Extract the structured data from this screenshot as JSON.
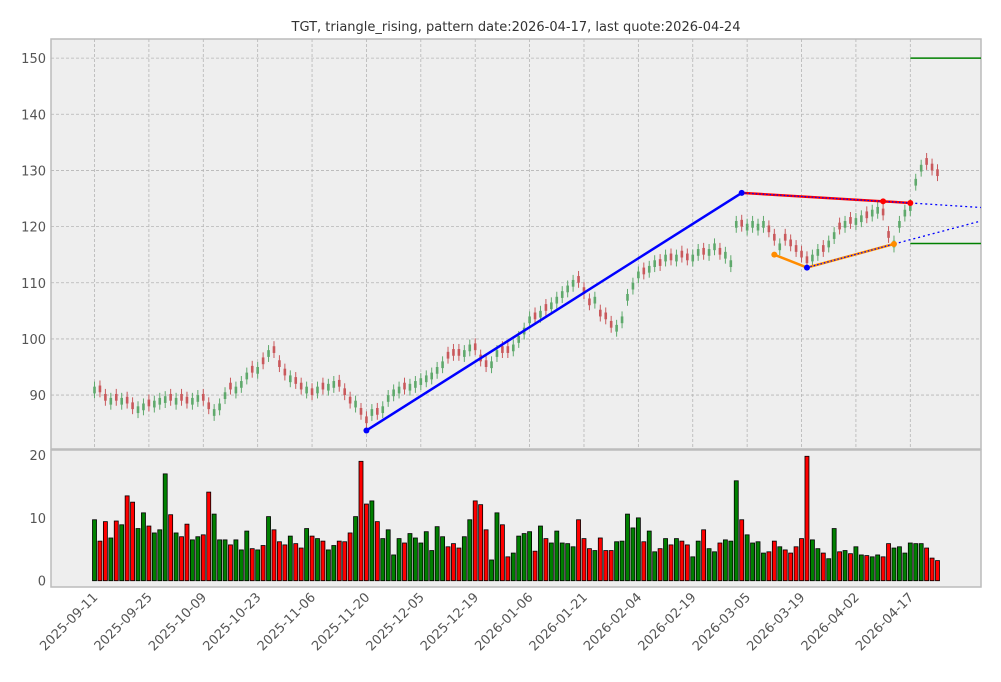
{
  "chart_data": {
    "type": "candlestick",
    "title": "TGT, triangle_rising, pattern date:2026-04-17, last quote:2026-04-24",
    "colors": {
      "up_candle": "#5fa96c",
      "down_candle": "#c9595c",
      "up_volume": "#008000",
      "down_volume": "#ff0000",
      "support_line": "#0000ff",
      "resistance_line": "#ff0000",
      "lower_line": "#ff8c00",
      "target_line": "#008000"
    },
    "grid": true,
    "price_axis": {
      "ylim": [
        80.4,
        153.4
      ],
      "ticks": [
        90,
        100,
        110,
        120,
        130,
        140,
        150
      ]
    },
    "volume_axis": {
      "ylim": [
        -1,
        20.8
      ],
      "ticks": [
        0,
        10,
        20
      ]
    },
    "x_ticks": [
      {
        "index": 0,
        "label": "2025-09-11"
      },
      {
        "index": 10,
        "label": "2025-09-25"
      },
      {
        "index": 20,
        "label": "2025-10-09"
      },
      {
        "index": 30,
        "label": "2025-10-23"
      },
      {
        "index": 40,
        "label": "2025-11-06"
      },
      {
        "index": 50,
        "label": "2025-11-20"
      },
      {
        "index": 60,
        "label": "2025-12-05"
      },
      {
        "index": 70,
        "label": "2025-12-19"
      },
      {
        "index": 80,
        "label": "2026-01-06"
      },
      {
        "index": 90,
        "label": "2026-01-21"
      },
      {
        "index": 100,
        "label": "2026-02-04"
      },
      {
        "index": 110,
        "label": "2026-02-19"
      },
      {
        "index": 120,
        "label": "2026-03-05"
      },
      {
        "index": 130,
        "label": "2026-03-19"
      },
      {
        "index": 140,
        "label": "2026-04-02"
      },
      {
        "index": 150,
        "label": "2026-04-17"
      }
    ],
    "xlim": [
      -8,
      163
    ],
    "direction": "GRRGRGRRGGRGGGRGRRGGRRGGGRGGGRGRGRRRGRRGRGRGGRRRGRRGRGGGGRGGGGGGGRRRGGRRRGGRRGGGGRGRGGGGGRRRGRRRGGGGGRGGRGRGRRGGRGGRGGGRGGGGRRGRRRRRGGRGGRGRGGRGGRRGGGGGGRRR",
    "close": [
      91.5,
      90.5,
      89,
      89.5,
      89,
      89.5,
      88.5,
      87.5,
      88,
      88.5,
      88,
      89,
      89.5,
      89.8,
      89,
      89.5,
      89,
      88.5,
      89.5,
      90,
      89,
      87.5,
      87.5,
      88.5,
      90.5,
      91,
      91.5,
      92.5,
      94,
      94,
      95,
      95.5,
      98,
      97.5,
      95,
      93.5,
      93.5,
      92,
      91,
      91.5,
      90,
      91.5,
      91,
      92,
      92.5,
      91.5,
      90,
      88.5,
      89,
      86.5,
      85,
      87.5,
      86.5,
      88,
      90,
      91,
      91.5,
      91,
      92,
      92.5,
      93,
      93.5,
      94,
      95,
      96,
      96.5,
      97,
      97,
      98,
      99,
      98,
      96,
      95,
      96,
      98,
      97.5,
      97.5,
      99,
      100.5,
      102,
      104,
      103.5,
      105,
      105,
      106.5,
      107.5,
      108.5,
      109.5,
      110.5,
      110,
      108,
      106,
      107.5,
      104,
      103.5,
      102,
      102.5,
      104,
      108,
      110,
      112,
      111.5,
      113,
      114,
      113,
      115,
      114,
      115,
      114.5,
      114,
      115,
      116,
      115,
      116,
      117,
      115,
      115.5,
      114,
      121,
      120,
      120.5,
      121,
      120.5,
      121,
      119,
      117.5,
      117,
      117.5,
      116.5,
      115.5,
      114.5,
      113.5,
      115,
      116,
      115.5,
      117.5,
      119,
      119.5,
      121,
      120.5,
      121.5,
      122,
      121.5,
      123,
      123.5,
      122,
      118,
      117.5,
      121,
      123,
      124,
      128.5,
      131,
      131,
      130,
      129
    ],
    "volume": [
      9.7,
      6.3,
      9.4,
      6.8,
      9.5,
      8.9,
      13.5,
      12.5,
      8.3,
      10.8,
      8.7,
      7.6,
      8.1,
      17.0,
      10.5,
      7.6,
      7.0,
      9.0,
      6.5,
      7.0,
      7.3,
      14.1,
      10.6,
      6.5,
      6.5,
      5.7,
      6.5,
      4.9,
      7.9,
      5.1,
      4.9,
      5.6,
      10.2,
      8.1,
      6.2,
      5.7,
      7.1,
      5.9,
      5.2,
      8.3,
      7.1,
      6.7,
      6.3,
      4.9,
      5.6,
      6.3,
      6.2,
      7.6,
      10.2,
      19.0,
      12.2,
      12.7,
      9.4,
      6.7,
      8.1,
      4.1,
      6.7,
      6.0,
      7.5,
      6.8,
      6.0,
      7.8,
      4.8,
      8.6,
      7.0,
      5.4,
      5.9,
      5.2,
      7.0,
      9.7,
      12.7,
      12.1,
      8.1,
      3.3,
      10.8,
      8.9,
      3.8,
      4.4,
      7.1,
      7.5,
      7.8,
      4.7,
      8.7,
      6.7,
      6.0,
      7.9,
      6.0,
      5.9,
      5.4,
      9.7,
      6.7,
      5.1,
      4.8,
      6.8,
      4.8,
      4.8,
      6.2,
      6.3,
      10.6,
      8.4,
      10.0,
      6.2,
      7.9,
      4.6,
      5.1,
      6.7,
      5.7,
      6.7,
      6.3,
      5.7,
      3.8,
      6.3,
      8.1,
      5.1,
      4.6,
      6.0,
      6.5,
      6.3,
      15.9,
      9.7,
      7.3,
      6.0,
      6.2,
      4.4,
      4.6,
      6.3,
      5.4,
      4.9,
      4.4,
      5.4,
      6.7,
      19.8,
      6.5,
      5.1,
      4.4,
      3.5,
      8.3,
      4.6,
      4.8,
      4.3,
      5.4,
      4.1,
      4.0,
      3.8,
      4.1,
      3.8,
      5.9,
      5.2,
      5.4,
      4.4,
      6.0,
      5.9,
      5.9,
      5.2,
      3.6,
      3.2
    ],
    "pattern_lines": {
      "rise_line": [
        [
          50,
          83.7
        ],
        [
          119,
          126
        ]
      ],
      "upper_line": [
        [
          119,
          126
        ],
        [
          145,
          124.5
        ],
        [
          150,
          124.2
        ]
      ],
      "lower_line": [
        [
          125,
          115
        ],
        [
          131,
          112.7
        ],
        [
          147,
          116.9
        ]
      ],
      "upper_projection": [
        [
          150,
          124.2
        ],
        [
          163,
          123.4
        ]
      ],
      "lower_projection": [
        [
          147,
          116.9
        ],
        [
          163,
          121.0
        ]
      ],
      "targets": [
        150,
        117
      ]
    }
  }
}
